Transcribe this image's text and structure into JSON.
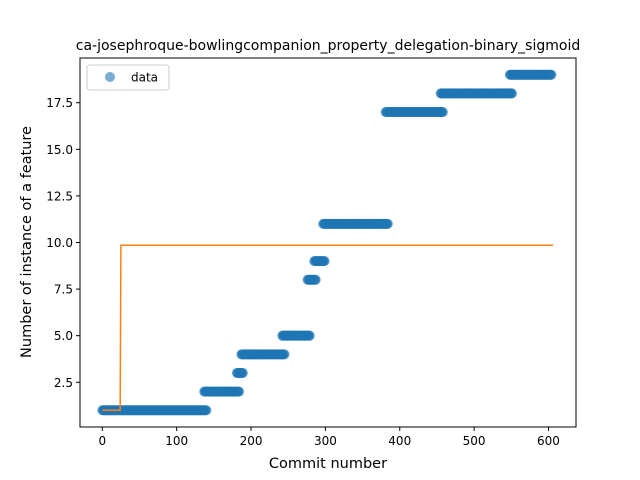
{
  "chart_data": {
    "type": "scatter",
    "title": "ca-josephroque-bowlingcompanion_property_delegation-binary_sigmoid",
    "xlabel": "Commit number",
    "ylabel": "Number of instance of a feature",
    "xlim": [
      -30,
      637
    ],
    "ylim": [
      0.1,
      19.9
    ],
    "xticks": [
      0,
      100,
      200,
      300,
      400,
      500,
      600
    ],
    "yticks": [
      2.5,
      5.0,
      7.5,
      10.0,
      12.5,
      15.0,
      17.5
    ],
    "xtick_labels": [
      "0",
      "100",
      "200",
      "300",
      "400",
      "500",
      "600"
    ],
    "ytick_labels": [
      "2.5",
      "5.0",
      "7.5",
      "10.0",
      "12.5",
      "15.0",
      "17.5"
    ],
    "grid": false,
    "legend": {
      "position": "top-left",
      "entries": [
        "data"
      ]
    },
    "series": [
      {
        "name": "data",
        "kind": "scatter",
        "color": "#1f77b4",
        "segments": [
          {
            "x_start": 0,
            "x_end": 140,
            "y": 1
          },
          {
            "x_start": 137,
            "x_end": 184,
            "y": 2
          },
          {
            "x_start": 181,
            "x_end": 189,
            "y": 3
          },
          {
            "x_start": 187,
            "x_end": 245,
            "y": 4
          },
          {
            "x_start": 242,
            "x_end": 279,
            "y": 5
          },
          {
            "x_start": 276,
            "x_end": 287,
            "y": 8
          },
          {
            "x_start": 285,
            "x_end": 299,
            "y": 9
          },
          {
            "x_start": 297,
            "x_end": 384,
            "y": 11
          },
          {
            "x_start": 381,
            "x_end": 458,
            "y": 17
          },
          {
            "x_start": 455,
            "x_end": 551,
            "y": 18
          },
          {
            "x_start": 548,
            "x_end": 604,
            "y": 19
          }
        ]
      },
      {
        "kind": "line",
        "color": "#ff7f0e",
        "x": [
          0,
          24,
          25,
          606
        ],
        "y": [
          1,
          1,
          9.85,
          9.85
        ]
      }
    ]
  }
}
